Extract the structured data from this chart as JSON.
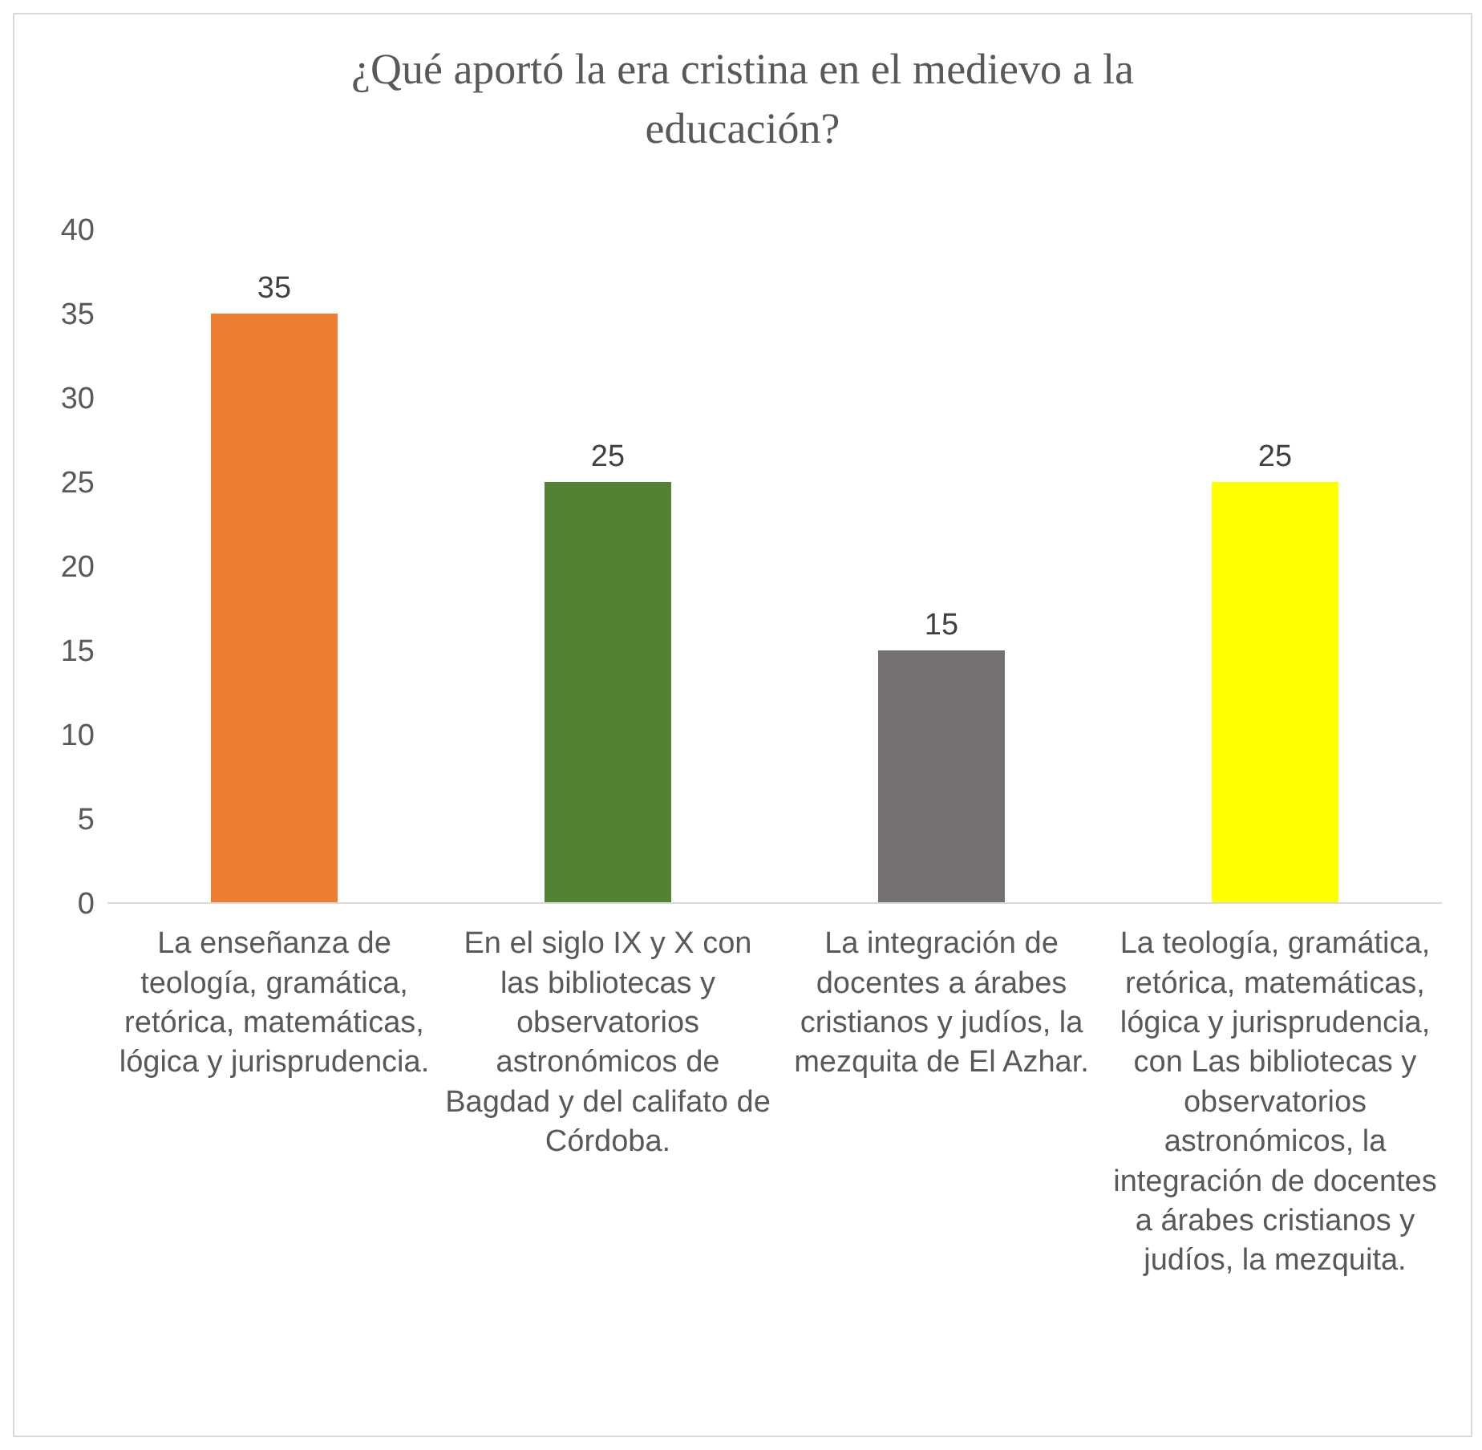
{
  "chart_data": {
    "type": "bar",
    "title": "¿Qué aportó la era cristina en el medievo a la educación?",
    "categories": [
      "La enseñanza de teología, gramática, retórica, matemáticas, lógica y jurisprudencia.",
      "En el siglo IX y X con las bibliotecas y observatorios astronómicos de Bagdad y del califato de Córdoba.",
      "La integración de docentes a árabes cristianos y judíos, la mezquita de El Azhar.",
      "La teología, gramática, retórica, matemáticas, lógica y jurisprudencia, con Las bibliotecas y observatorios astronómicos, la integración de docentes a árabes cristianos y judíos, la mezquita."
    ],
    "values": [
      35,
      25,
      15,
      25
    ],
    "colors": [
      "#ed7d31",
      "#548235",
      "#767171",
      "#ffff00"
    ],
    "ylim": [
      0,
      40
    ],
    "yticks": [
      0,
      5,
      10,
      15,
      20,
      25,
      30,
      35,
      40
    ],
    "data_labels": true,
    "grid": false
  }
}
